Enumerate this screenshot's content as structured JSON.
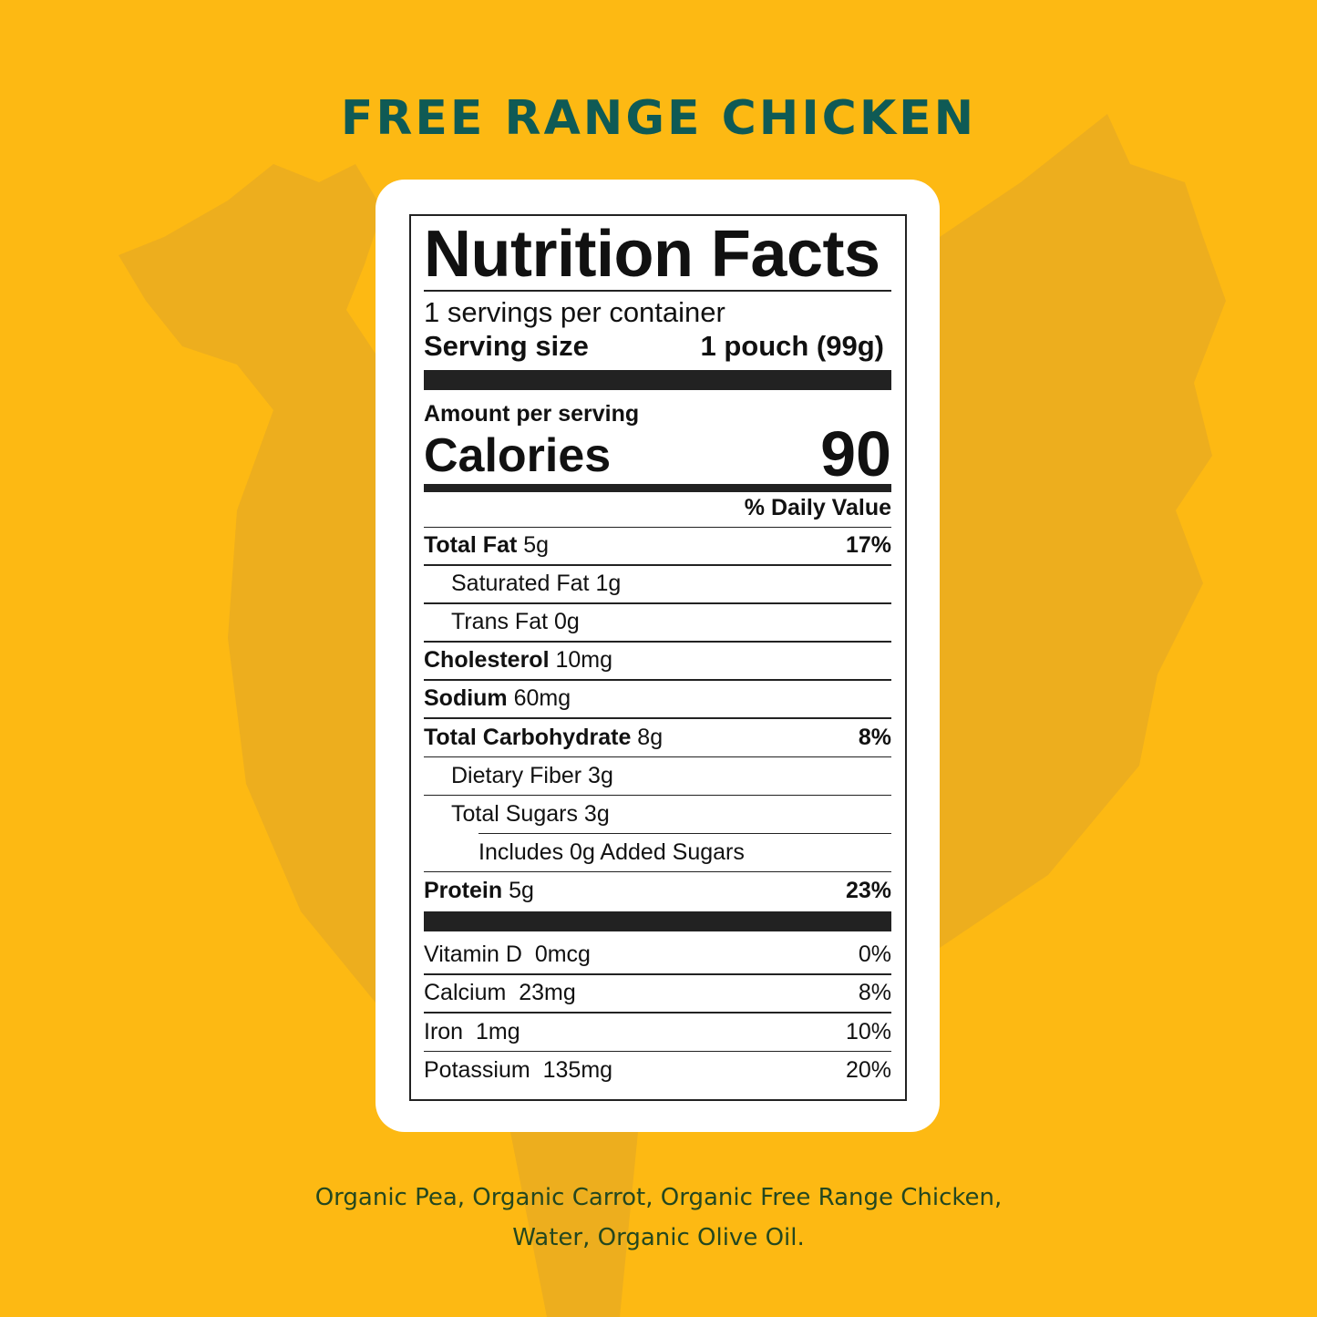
{
  "title": "FREE RANGE CHICKEN",
  "colors": {
    "background": "#FDB913",
    "title": "#0F5A55",
    "ingredients": "#24471F",
    "silhouette": "#EDAE1E"
  },
  "label": {
    "heading": "Nutrition Facts",
    "servings": "1 servings per container",
    "serving_size_label": "Serving size",
    "serving_size_value": "1 pouch (99g)",
    "amount_per_serving": "Amount per serving",
    "calories_label": "Calories",
    "calories_value": "90",
    "daily_value_header": "% Daily Value",
    "nutrients": [
      {
        "name": "Total Fat",
        "amount": "5g",
        "dv": "17%"
      },
      {
        "name": "Saturated Fat",
        "amount": "1g",
        "dv": ""
      },
      {
        "name": "Trans Fat",
        "amount": "0g",
        "dv": ""
      },
      {
        "name": "Cholesterol",
        "amount": "10mg",
        "dv": ""
      },
      {
        "name": "Sodium",
        "amount": "60mg",
        "dv": ""
      },
      {
        "name": "Total Carbohydrate",
        "amount": "8g",
        "dv": "8%"
      },
      {
        "name": "Dietary Fiber",
        "amount": "3g",
        "dv": ""
      },
      {
        "name": "Total Sugars",
        "amount": "3g",
        "dv": ""
      },
      {
        "name": "Includes 0g Added Sugars",
        "amount": "",
        "dv": ""
      },
      {
        "name": "Protein",
        "amount": "5g",
        "dv": "23%"
      }
    ],
    "vitamins": [
      {
        "name": "Vitamin D",
        "amount": "0mcg",
        "dv": "0%"
      },
      {
        "name": "Calcium",
        "amount": "23mg",
        "dv": "8%"
      },
      {
        "name": "Iron",
        "amount": "1mg",
        "dv": "10%"
      },
      {
        "name": "Potassium",
        "amount": "135mg",
        "dv": "20%"
      }
    ]
  },
  "ingredients": {
    "line1": "Organic Pea, Organic Carrot, Organic Free Range Chicken,",
    "line2": "Water, Organic Olive Oil."
  }
}
